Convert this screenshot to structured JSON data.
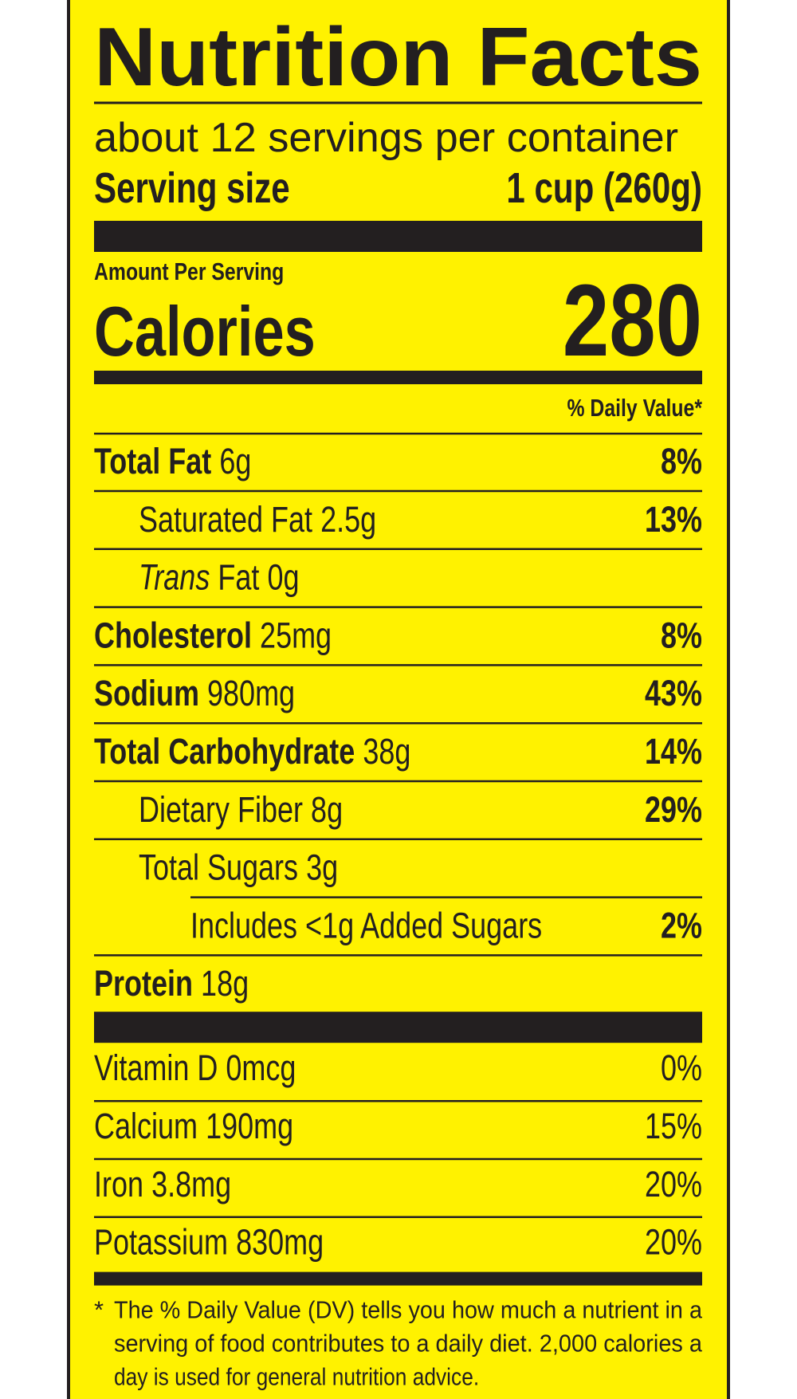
{
  "title": "Nutrition Facts",
  "servings": "about 12 servings per container",
  "serving_size": {
    "label": "Serving size",
    "value": "1 cup (260g)"
  },
  "amount_per_serving": "Amount Per Serving",
  "calories": {
    "label": "Calories",
    "value": 280
  },
  "daily_value_header": "% Daily Value*",
  "nutrients": [
    {
      "name": "Total Fat",
      "amount": "6g",
      "dv": "8%",
      "bold": true,
      "indent": 0
    },
    {
      "name": "Saturated Fat",
      "amount": "2.5g",
      "dv": "13%",
      "bold": false,
      "indent": 1
    },
    {
      "name_italic": "Trans",
      "name": "Fat",
      "amount": "0g",
      "bold": false,
      "indent": 1
    },
    {
      "name": "Cholesterol",
      "amount": "25mg",
      "dv": "8%",
      "bold": true,
      "indent": 0
    },
    {
      "name": "Sodium",
      "amount": "980mg",
      "dv": "43%",
      "bold": true,
      "indent": 0
    },
    {
      "name": "Total Carbohydrate",
      "amount": "38g",
      "dv": "14%",
      "bold": true,
      "indent": 0
    },
    {
      "name": "Dietary Fiber",
      "amount": "8g",
      "dv": "29%",
      "bold": false,
      "indent": 1
    },
    {
      "name": "Total Sugars",
      "amount": "3g",
      "bold": false,
      "indent": 1
    },
    {
      "name": "Includes <1g Added Sugars",
      "dv": "2%",
      "bold": false,
      "indent": 2
    },
    {
      "name": "Protein",
      "amount": "18g",
      "bold": true,
      "indent": 0
    }
  ],
  "vitamins": [
    {
      "name": "Vitamin D",
      "amount": "0mcg",
      "dv": "0%"
    },
    {
      "name": "Calcium",
      "amount": "190mg",
      "dv": "15%"
    },
    {
      "name": "Iron",
      "amount": "3.8mg",
      "dv": "20%"
    },
    {
      "name": "Potassium",
      "amount": "830mg",
      "dv": "20%"
    }
  ],
  "footnote": {
    "marker": "*",
    "lines": [
      "The % Daily Value (DV) tells you how much a nutrient in a",
      "serving of food contributes to a daily diet. 2,000 calories a",
      "day is used for general nutrition advice."
    ]
  }
}
